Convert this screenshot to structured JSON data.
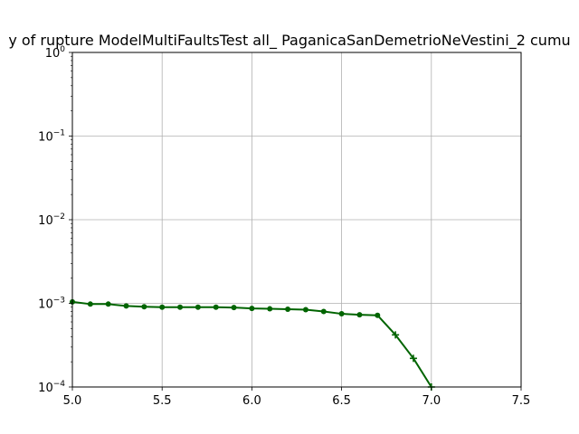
{
  "chart_data": {
    "type": "line",
    "title": "y of rupture ModelMultiFaultsTest all_ PaganicaSanDemetrioNeVestini_2 cumu",
    "xlabel": "",
    "ylabel": "",
    "xlim": [
      5.0,
      7.5
    ],
    "ylim": [
      0.0001,
      1
    ],
    "y_scale": "log",
    "grid": true,
    "x_ticks": [
      {
        "value": 5.0,
        "label": "5.0"
      },
      {
        "value": 5.5,
        "label": "5.5"
      },
      {
        "value": 6.0,
        "label": "6.0"
      },
      {
        "value": 6.5,
        "label": "6.5"
      },
      {
        "value": 7.0,
        "label": "7.0"
      },
      {
        "value": 7.5,
        "label": "7.5"
      }
    ],
    "y_ticks": [
      {
        "value": 0.0001,
        "base": "10",
        "exp": "−4"
      },
      {
        "value": 0.001,
        "base": "10",
        "exp": "−3"
      },
      {
        "value": 0.01,
        "base": "10",
        "exp": "−2"
      },
      {
        "value": 0.1,
        "base": "10",
        "exp": "−1"
      },
      {
        "value": 1,
        "base": "10",
        "exp": "0"
      }
    ],
    "series": [
      {
        "color": "#006400",
        "x": [
          5.0,
          5.1,
          5.2,
          5.3,
          5.4,
          5.5,
          5.6,
          5.7,
          5.8,
          5.9,
          6.0,
          6.1,
          6.2,
          6.3,
          6.4,
          6.5,
          6.6,
          6.7,
          6.8,
          6.9,
          7.0
        ],
        "y": [
          0.00104,
          0.00098,
          0.00098,
          0.00093,
          0.00091,
          0.0009,
          0.0009,
          0.0009,
          0.0009,
          0.00089,
          0.00087,
          0.00086,
          0.00085,
          0.00084,
          0.0008,
          0.00075,
          0.00073,
          0.00072,
          0.00042,
          0.00022,
          0.0001
        ],
        "marker_style": [
          "circle",
          "circle",
          "circle",
          "circle",
          "circle",
          "circle",
          "circle",
          "circle",
          "circle",
          "circle",
          "circle",
          "circle",
          "circle",
          "circle",
          "circle",
          "circle",
          "circle",
          "circle",
          "plus",
          "plus",
          "plus"
        ]
      }
    ]
  }
}
